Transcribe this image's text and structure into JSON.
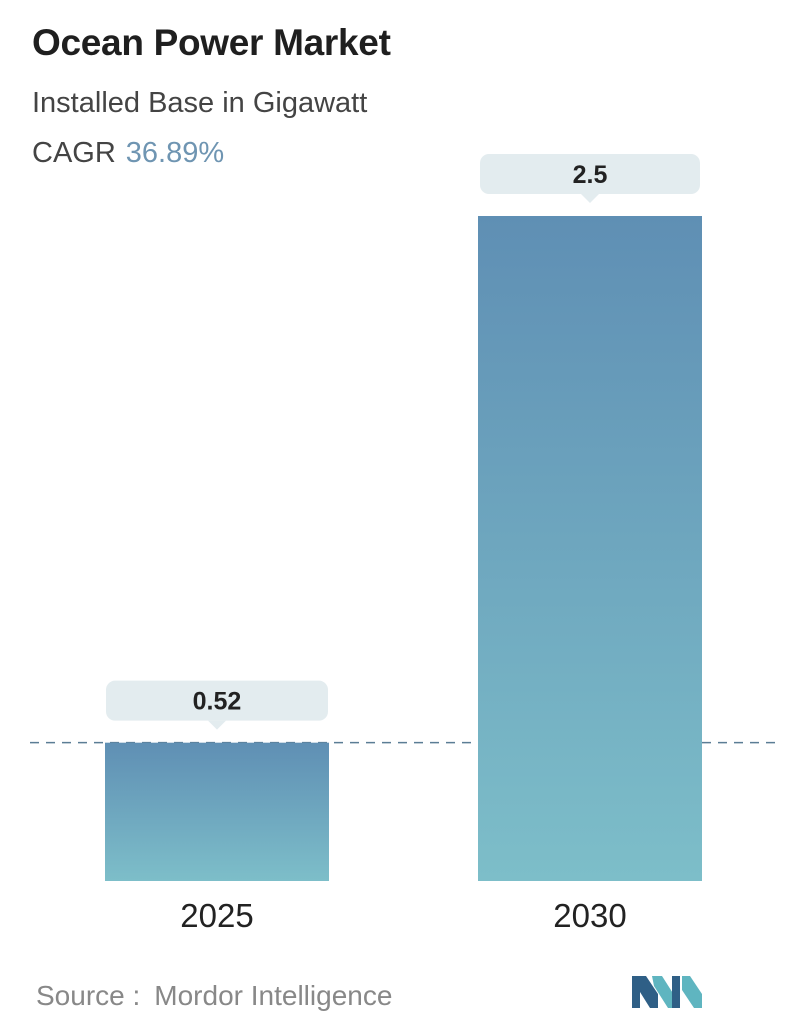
{
  "header": {
    "title": "Ocean Power Market",
    "subtitle": "Installed Base in Gigawatt",
    "cagr_label": "CAGR",
    "cagr_value": "36.89%"
  },
  "chart_data": {
    "type": "bar",
    "title": "Ocean Power Market",
    "subtitle": "Installed Base in Gigawatt",
    "categories": [
      "2025",
      "2030"
    ],
    "values": [
      0.52,
      2.5
    ],
    "value_labels": [
      "0.52",
      "2.5"
    ],
    "ylim": [
      0,
      2.5
    ],
    "xlabel": "",
    "ylabel": "",
    "grid": false,
    "legend": "none",
    "reference_line": "dashed line at the 2025 value",
    "colors": {
      "bar_top": "#5f8fb4",
      "bar_bottom": "#7dbec9",
      "label_box": "#e3ecef",
      "dashed_line": "#5b7d95"
    }
  },
  "footer": {
    "source_label": "Source :",
    "source_value": "Mordor Intelligence",
    "logo_icon": "mordor-intelligence-logo-icon",
    "logo_colors": [
      "#2f5f86",
      "#5fb5c0"
    ]
  }
}
